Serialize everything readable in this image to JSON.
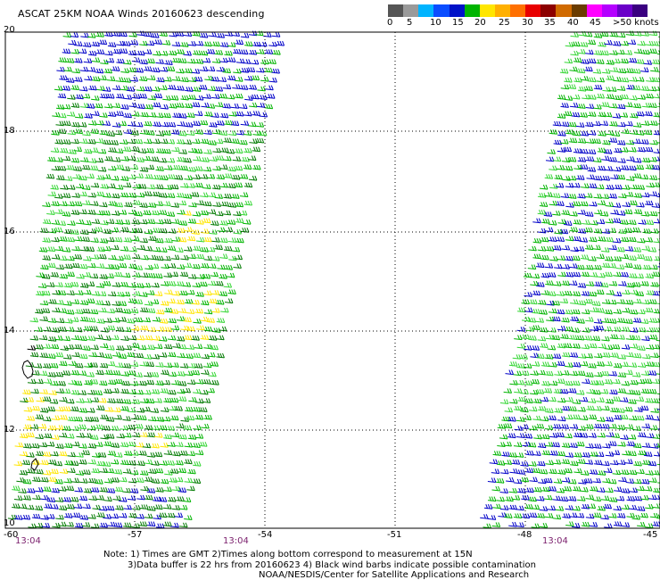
{
  "title": "ASCAT 25KM NOAA Winds 20160623 descending",
  "colorbar": {
    "colors": [
      "#555555",
      "#9a9a9a",
      "#00b4ff",
      "#0a4dff",
      "#0012c8",
      "#00b400",
      "#ffe600",
      "#ffb000",
      "#ff7000",
      "#e80000",
      "#8c0000",
      "#d06a00",
      "#6a3c00",
      "#ff00ff",
      "#b400ff",
      "#6a00c8",
      "#3a0080"
    ],
    "ticks": [
      "0",
      "5",
      "10",
      "15",
      "20",
      "25",
      "30",
      "35",
      "40",
      "45",
      ">50 knots"
    ]
  },
  "y_axis_labels": [
    "20",
    "18",
    "16",
    "14",
    "12",
    "10"
  ],
  "x_axis_labels": [
    "-60",
    "-57",
    "-54",
    "-51",
    "-48",
    "-45"
  ],
  "time_labels": [
    "13:04",
    "13:04",
    "13:04"
  ],
  "notes": [
    "Note: 1) Times are GMT 2)Times along bottom correspond to measurement at 15N",
    "3)Data buffer is 22 hrs from 20160623 4) Black wind barbs indicate possible contamination",
    "NOAA/NESDIS/Center for Satellite Applications and Research"
  ],
  "map": {
    "swath_colors": {
      "blue": "#0000c8",
      "green": "#00b400",
      "lightgreen": "#34d634",
      "darkgreen": "#007a00",
      "yellow": "#ffe600",
      "black": "#000000"
    }
  }
}
